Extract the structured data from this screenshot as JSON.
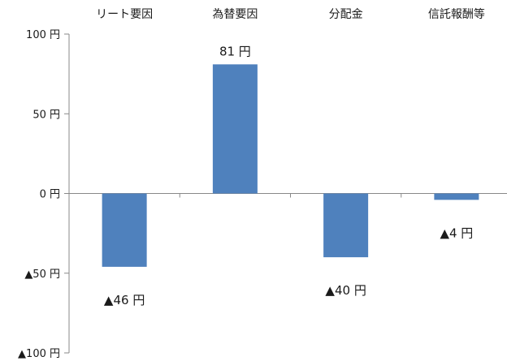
{
  "chart_data": {
    "type": "bar",
    "categories": [
      "リート要因",
      "為替要因",
      "分配金",
      "信託報酬等"
    ],
    "values": [
      -46,
      81,
      -40,
      -4
    ],
    "data_labels": [
      "▲46 円",
      "81 円",
      "▲40 円",
      "▲4 円"
    ],
    "ylim": [
      -100,
      100
    ],
    "yticks": [
      100,
      50,
      0,
      -50,
      -100
    ],
    "ytick_labels": [
      "100 円",
      "50 円",
      "0 円",
      "▲50 円",
      "▲100 円"
    ],
    "category_axis_position": "top",
    "bar_color": "#4f81bd",
    "grid": false,
    "title": "",
    "xlabel": "",
    "ylabel": ""
  }
}
